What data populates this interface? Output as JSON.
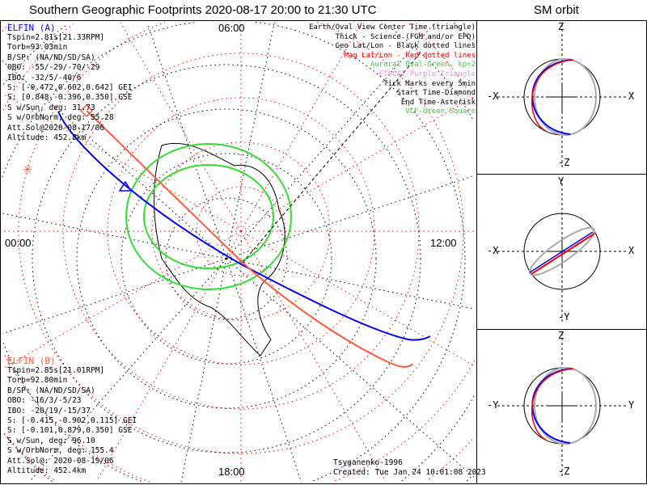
{
  "title": "Southern Geographic Footprints 2020-08-17 20:00 to 21:30 UTC",
  "orbit_title": "SM orbit",
  "hours": {
    "top": "06:00",
    "left": "00:00",
    "right": "12:00",
    "bottom": "18:00"
  },
  "elfin_a": {
    "name": "ELFIN (A)",
    "color": "#0000ff",
    "lines": [
      "Tspin=2.81s[21.33RPM]",
      "Torb=93.03min",
      "B/SP: (NA/ND/SD/SA)",
      "OBO: -55/-29/-70/-29",
      "IBO: -32/5/-40/6",
      "S: [-0.472,0.602,0.642] GEI",
      "S: [0.848,-0.396,0.350] GSE",
      "S w/Sun, deg: 31.73",
      "S w/OrbNorm, deg: 55.28",
      "Att.Sol@2020-08-17/06",
      "Altitude: 452.8km"
    ]
  },
  "elfin_b": {
    "name": "ELFIN (B)",
    "color": "#ff5a3c",
    "lines": [
      "Tspin=2.85s[21.01RPM]",
      "Torb=92.80min",
      "B/SP: (NA/ND/SD/SA)",
      "OBO: -16/3/-5/23",
      "IBO: -20/19/-15/37",
      "S: [-0.415,-0.902,0.115] GEI",
      "S: [-0.101,0.879,0.350] GSE",
      "S w/Sun, deg: 96.10",
      "S w/OrbNorm, deg: 155.4",
      "Att.Sol@: 2020-08-19/06",
      "Altitude: 452.4km"
    ]
  },
  "legend": [
    {
      "text": "Earth/Oval View Center Time (triangle)",
      "color": "#000000"
    },
    {
      "text": "Thick - Science (FGM and/or EPD)",
      "color": "#000000"
    },
    {
      "text": "Geo Lat/Lon - Black dotted lines",
      "color": "#000000"
    },
    {
      "text": "Mag Lat/Lon - Red dotted lines",
      "color": "#ff0000"
    },
    {
      "text": "Auroral Oval-Green, kp=2",
      "color": "#33cc33"
    },
    {
      "text": "EISCAT-Purple Triangle",
      "color": "#ee88ee"
    },
    {
      "text": "Tick Marks every 5min",
      "color": "#000000"
    },
    {
      "text": "Start Time-Diamond",
      "color": "#000000"
    },
    {
      "text": "End Time-Asterisk",
      "color": "#000000"
    },
    {
      "text": "VLF-Green Square",
      "color": "#33cc33"
    }
  ],
  "footer": {
    "model": "Tsyganenko-1996",
    "created": "Created: Tue Jan 24 10:01:08 2023"
  },
  "panels": [
    {
      "top": "Z",
      "bottom": "-Z",
      "left": "-X",
      "right": "X"
    },
    {
      "top": "Y",
      "bottom": "-Y",
      "left": "-X",
      "right": "X"
    },
    {
      "top": "Z",
      "bottom": "-Z",
      "left": "-Y",
      "right": "Y"
    }
  ]
}
